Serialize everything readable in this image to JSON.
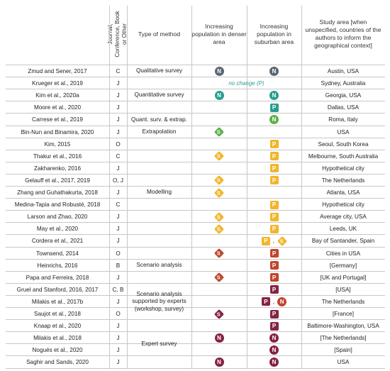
{
  "headers": {
    "journal": "Journal, Conference, Book or Other",
    "method": "Type of method",
    "denser": "Increasing population in denser area",
    "suburban": "Increasing population in suburban area",
    "area": "Study area [when unspecified, countries of the authors to inform the geographical context]"
  },
  "colors": {
    "qualitative": "#5a6772",
    "quantitative": "#2a9d8f",
    "extrapolation": "#5fb04a",
    "modelling": "#f2b52b",
    "scenario": "#c0462d",
    "expert_scenario": "#862342",
    "expert": "#862342"
  },
  "method_groups": [
    {
      "label": "Qualitative survey"
    },
    {
      "label": "Quantitative survey"
    },
    {
      "label": "Quant. surv. & extrap."
    },
    {
      "label": "Extrapolation"
    },
    {
      "label": "Modelling"
    },
    {
      "label": "Scenario analysis"
    },
    {
      "label": "Scenario analysis supported by experts (workshop, survey)"
    },
    {
      "label": "Expert survey"
    }
  ],
  "rows": [
    {
      "author": "Zmud and Sener, 2017",
      "type": "C",
      "denser": [
        {
          "shape": "circle",
          "letter": "N",
          "color": "qualitative"
        }
      ],
      "suburban": [
        {
          "shape": "circle",
          "letter": "N",
          "color": "qualitative"
        }
      ],
      "area": "Austin, USA"
    },
    {
      "author": "Krueger et al., 2019",
      "type": "J",
      "note": "no change (P)",
      "area": "Sydney, Australia"
    },
    {
      "author": "Kim et al., 2020a",
      "type": "J",
      "denser": [
        {
          "shape": "circle",
          "letter": "N",
          "color": "quantitative"
        }
      ],
      "suburban": [
        {
          "shape": "circle",
          "letter": "N",
          "color": "quantitative"
        }
      ],
      "area": "Georgia, USA"
    },
    {
      "author": "Moore et al., 2020",
      "type": "J",
      "suburban": [
        {
          "shape": "square",
          "letter": "P",
          "color": "quantitative"
        }
      ],
      "area": "Dallas, USA"
    },
    {
      "author": "Carrese et al., 2019",
      "type": "J",
      "suburban": [
        {
          "shape": "circle",
          "letter": "N",
          "color": "extrapolation"
        }
      ],
      "area": "Roma, Italy"
    },
    {
      "author": "Bin-Nun and Binamira, 2020",
      "type": "J",
      "denser": [
        {
          "shape": "diamond",
          "letter": "S",
          "color": "extrapolation"
        }
      ],
      "area": "USA"
    },
    {
      "author": "Kim, 2015",
      "type": "O",
      "suburban": [
        {
          "shape": "square",
          "letter": "P",
          "color": "modelling"
        }
      ],
      "area": "Seoul, South Korea"
    },
    {
      "author": "Thakur et al., 2016",
      "type": "C",
      "denser": [
        {
          "shape": "diamond",
          "letter": "S",
          "color": "modelling"
        }
      ],
      "suburban": [
        {
          "shape": "square",
          "letter": "P",
          "color": "modelling"
        }
      ],
      "area": "Melbourne, South Australia"
    },
    {
      "author": "Zakharenko, 2016",
      "type": "J",
      "suburban": [
        {
          "shape": "square",
          "letter": "P",
          "color": "modelling"
        }
      ],
      "area": "Hypothetical city"
    },
    {
      "author": "Gelauff et al., 2017, 2019",
      "type": "O, J",
      "denser": [
        {
          "shape": "diamond",
          "letter": "S",
          "color": "modelling"
        }
      ],
      "suburban": [
        {
          "shape": "square",
          "letter": "P",
          "color": "modelling"
        }
      ],
      "area": "The Netherlands"
    },
    {
      "author": "Zhang and Guhathakurta, 2018",
      "type": "J",
      "denser": [
        {
          "shape": "diamond",
          "letter": "S",
          "color": "modelling"
        }
      ],
      "area": "Atlanta, USA"
    },
    {
      "author": "Medina-Tapia and Robusté, 2018",
      "type": "C",
      "suburban": [
        {
          "shape": "square",
          "letter": "P",
          "color": "modelling"
        }
      ],
      "area": "Hypothetical city"
    },
    {
      "author": "Larson and Zhao, 2020",
      "type": "J",
      "denser": [
        {
          "shape": "diamond",
          "letter": "S",
          "color": "modelling"
        }
      ],
      "suburban": [
        {
          "shape": "square",
          "letter": "P",
          "color": "modelling"
        }
      ],
      "area": "Average city, USA"
    },
    {
      "author": "May et al., 2020",
      "type": "J",
      "denser": [
        {
          "shape": "diamond",
          "letter": "S",
          "color": "modelling"
        }
      ],
      "suburban": [
        {
          "shape": "square",
          "letter": "P",
          "color": "modelling"
        }
      ],
      "area": "Leeds, UK"
    },
    {
      "author": "Cordera et al., 2021",
      "type": "J",
      "suburban": [
        {
          "shape": "square",
          "letter": "P",
          "color": "modelling"
        },
        {
          "shape": "diamond",
          "letter": "S",
          "color": "modelling"
        }
      ],
      "area": "Bay of Santander, Spain"
    },
    {
      "author": "Townsend, 2014",
      "type": "O",
      "denser": [
        {
          "shape": "diamond",
          "letter": "S",
          "color": "scenario"
        }
      ],
      "suburban": [
        {
          "shape": "square",
          "letter": "P",
          "color": "scenario"
        }
      ],
      "area": "Cities in USA"
    },
    {
      "author": "Heinrichs, 2016",
      "type": "B",
      "suburban": [
        {
          "shape": "square",
          "letter": "P",
          "color": "scenario"
        }
      ],
      "area": "[Germany]"
    },
    {
      "author": "Papa and Ferreira, 2018",
      "type": "J",
      "denser": [
        {
          "shape": "diamond",
          "letter": "S",
          "color": "scenario"
        }
      ],
      "suburban": [
        {
          "shape": "square",
          "letter": "P",
          "color": "scenario"
        }
      ],
      "area": "[UK and Portugal]"
    },
    {
      "author": "Gruel and Stanford, 2016, 2017",
      "type": "C, B",
      "suburban": [
        {
          "shape": "square",
          "letter": "P",
          "color": "expert_scenario"
        }
      ],
      "area": "[USA]"
    },
    {
      "author": "Milakis et al., 2017b",
      "type": "J",
      "suburban": [
        {
          "shape": "square",
          "letter": "P",
          "color": "expert_scenario"
        },
        {
          "shape": "circle",
          "letter": "N",
          "color": "scenario"
        }
      ],
      "area": "The Netherlands"
    },
    {
      "author": "Saujot et al., 2018",
      "type": "O",
      "denser": [
        {
          "shape": "diamond",
          "letter": "S",
          "color": "expert_scenario"
        }
      ],
      "suburban": [
        {
          "shape": "square",
          "letter": "P",
          "color": "expert_scenario"
        }
      ],
      "area": "[France]"
    },
    {
      "author": "Knaap et al., 2020",
      "type": "J",
      "suburban": [
        {
          "shape": "square",
          "letter": "P",
          "color": "expert_scenario"
        }
      ],
      "area": "Baltimore-Washington, USA"
    },
    {
      "author": "Milakis et al., 2018",
      "type": "J",
      "denser": [
        {
          "shape": "circle",
          "letter": "N",
          "color": "expert"
        }
      ],
      "suburban": [
        {
          "shape": "circle",
          "letter": "N",
          "color": "expert"
        }
      ],
      "area": "[The Netherlands]"
    },
    {
      "author": "Nogués et al., 2020",
      "type": "J",
      "suburban": [
        {
          "shape": "circle",
          "letter": "N",
          "color": "expert"
        }
      ],
      "area": "[Spain]"
    },
    {
      "author": "Saghir and Sands, 2020",
      "type": "J",
      "denser": [
        {
          "shape": "circle",
          "letter": "N",
          "color": "expert"
        }
      ],
      "suburban": [
        {
          "shape": "circle",
          "letter": "N",
          "color": "expert"
        }
      ],
      "area": "USA"
    }
  ]
}
